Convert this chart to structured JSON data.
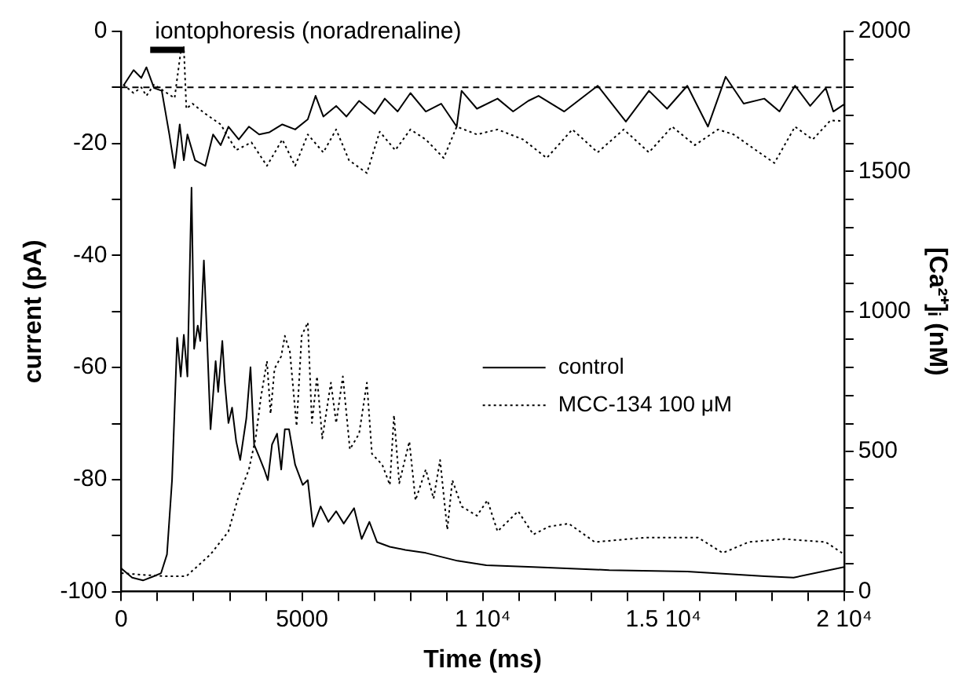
{
  "chart_data": {
    "type": "line",
    "xlabel": "Time (ms)",
    "ylabel": "current (pA)",
    "y2label": "[Ca²⁺]ᵢ (nM)",
    "xlim": [
      0,
      20000
    ],
    "xticks": [
      0,
      {
        "value": 1000,
        "label": null
      },
      {
        "value": 2000,
        "label": null
      },
      {
        "value": 3000,
        "label": null
      },
      {
        "value": 4000,
        "label": null
      },
      5000,
      {
        "value": 6000,
        "label": null
      },
      {
        "value": 7000,
        "label": null
      },
      {
        "value": 8000,
        "label": null
      },
      {
        "value": 9000,
        "label": null
      },
      {
        "value": 10000,
        "label": "1 10⁴"
      },
      {
        "value": 11000,
        "label": null
      },
      {
        "value": 12000,
        "label": null
      },
      {
        "value": 13000,
        "label": null
      },
      {
        "value": 14000,
        "label": null
      },
      {
        "value": 15000,
        "label": "1.5 10⁴"
      },
      {
        "value": 16000,
        "label": null
      },
      {
        "value": 17000,
        "label": null
      },
      {
        "value": 18000,
        "label": null
      },
      {
        "value": 19000,
        "label": null
      },
      {
        "value": 20000,
        "label": "2 10⁴"
      }
    ],
    "ylim": [
      -100,
      0
    ],
    "yticks": [
      -100,
      {
        "value": -90,
        "label": null
      },
      -80,
      {
        "value": -70,
        "label": null
      },
      -60,
      {
        "value": -50,
        "label": null
      },
      -40,
      {
        "value": -30,
        "label": null
      },
      -20,
      {
        "value": -10,
        "label": null
      },
      0
    ],
    "y2lim": [
      0,
      2000
    ],
    "y2ticks": [
      0,
      {
        "value": 100,
        "label": null
      },
      {
        "value": 200,
        "label": null
      },
      {
        "value": 300,
        "label": null
      },
      {
        "value": 400,
        "label": null
      },
      500,
      {
        "value": 600,
        "label": null
      },
      {
        "value": 700,
        "label": null
      },
      {
        "value": 800,
        "label": null
      },
      {
        "value": 900,
        "label": null
      },
      1000,
      {
        "value": 1100,
        "label": null
      },
      {
        "value": 1200,
        "label": null
      },
      {
        "value": 1300,
        "label": null
      },
      {
        "value": 1400,
        "label": null
      },
      1500,
      {
        "value": 1600,
        "label": null
      },
      {
        "value": 1700,
        "label": null
      },
      {
        "value": 1800,
        "label": null
      },
      {
        "value": 1900,
        "label": null
      },
      2000
    ],
    "grid": false,
    "legend": "right",
    "marker": "none",
    "ref_lines": [
      {
        "axis": "y",
        "value": -10,
        "line_style": "dashed",
        "color": "#000000"
      }
    ],
    "annotations": [
      {
        "text": "iontophoresis (noradrenaline)",
        "x": 800,
        "y": -3.3
      }
    ],
    "series": [
      {
        "color": "#000000",
        "line_style": "solid",
        "x": [
          800,
          1750
        ],
        "values": [
          -3.3,
          -3.3
        ]
      },
      {
        "name": "control",
        "color": "#000000",
        "line_style": "solid",
        "x": [
          57,
          340,
          553,
          695,
          906,
          1120,
          1330,
          1475,
          1617,
          1730,
          1830,
          2040,
          2325,
          2540,
          2750,
          2965,
          3250,
          3530,
          3815,
          4100,
          4455,
          4810,
          5160,
          5375,
          5590,
          5945,
          6230,
          6580,
          7010,
          7290,
          7645,
          8000,
          8425,
          8850,
          9280,
          9415,
          9840,
          10410,
          10840,
          11260,
          11545,
          12255,
          13180,
          13960,
          14600,
          15100,
          15660,
          16230,
          16720,
          17220,
          17790,
          18210,
          18640,
          19060,
          19490,
          19700,
          20000
        ],
        "values": [
          -9.7,
          -6.9,
          -8.3,
          -6.4,
          -10.1,
          -10.6,
          -18.4,
          -24.4,
          -16.6,
          -23,
          -18.4,
          -23,
          -24,
          -18.4,
          -20.3,
          -17,
          -19.3,
          -17,
          -18.4,
          -18,
          -16.6,
          -17.5,
          -15.7,
          -11.5,
          -15.2,
          -13.3,
          -15.2,
          -12.4,
          -14.7,
          -12,
          -14.3,
          -11,
          -14.3,
          -12.9,
          -17,
          -10.6,
          -13.8,
          -12,
          -14.3,
          -12.4,
          -11.5,
          -14.3,
          -9.7,
          -16.1,
          -10.6,
          -13.8,
          -9.7,
          -17,
          -8.1,
          -12.9,
          -12,
          -14.3,
          -9.7,
          -13.3,
          -10.1,
          -14.3,
          -13
        ]
      },
      {
        "name": "MCC-134 100 μM",
        "color": "#000000",
        "line_style": "dotted",
        "x": [
          57,
          340,
          553,
          695,
          906,
          1475,
          1645,
          1730,
          1800,
          1970,
          2325,
          2750,
          3180,
          3600,
          4030,
          4455,
          4810,
          5160,
          5590,
          5945,
          6300,
          6795,
          7150,
          7580,
          8000,
          8425,
          8920,
          9280,
          9840,
          10410,
          11120,
          11770,
          12480,
          13180,
          13900,
          14600,
          15240,
          15870,
          16510,
          16940,
          18070,
          18640,
          19130,
          19620,
          20000
        ],
        "values": [
          -9.5,
          -11,
          -10,
          -11.5,
          -9.5,
          -11.9,
          -3.6,
          -2.8,
          -13.8,
          -12.9,
          -14.7,
          -16.6,
          -21.2,
          -19.8,
          -24,
          -19.3,
          -24,
          -18.4,
          -21.6,
          -17.5,
          -23,
          -25.3,
          -17.9,
          -21.2,
          -17.5,
          -19.3,
          -22.6,
          -17,
          -18.4,
          -17.5,
          -19.3,
          -22.6,
          -17.5,
          -21.6,
          -17.5,
          -21.6,
          -17,
          -20.3,
          -17.5,
          -18.4,
          -23.5,
          -17,
          -19.3,
          -15.9,
          -16
        ]
      },
      {
        "color": "#000000",
        "line_style": "solid",
        "axis": "y2",
        "x": [
          0,
          300,
          600,
          900,
          1100,
          1264,
          1404,
          1546,
          1645,
          1730,
          1830,
          1943,
          2015,
          2115,
          2185,
          2285,
          2370,
          2470,
          2610,
          2680,
          2795,
          2865,
          2965,
          3065,
          3180,
          3290,
          3460,
          3575,
          3675,
          3815,
          3955,
          4055,
          4170,
          4310,
          4425,
          4525,
          4640,
          4810,
          5020,
          5160,
          5305,
          5515,
          5730,
          5945,
          6155,
          6440,
          6650,
          6865,
          7075,
          7430,
          7860,
          8425,
          9300,
          10100,
          11400,
          13500,
          15660,
          17800,
          18600,
          20000
        ],
        "values": [
          83,
          50,
          40,
          55,
          66,
          133,
          398,
          906,
          768,
          917,
          768,
          1442,
          867,
          950,
          895,
          1182,
          913,
          580,
          823,
          713,
          895,
          746,
          602,
          657,
          536,
          470,
          619,
          801,
          525,
          481,
          436,
          398,
          525,
          564,
          436,
          580,
          580,
          453,
          381,
          398,
          232,
          304,
          249,
          287,
          243,
          298,
          188,
          249,
          177,
          160,
          149,
          138,
          110,
          94,
          88,
          77,
          72,
          55,
          50,
          88
        ]
      },
      {
        "color": "#000000",
        "line_style": "dotted",
        "axis": "y2",
        "x": [
          0,
          600,
          1200,
          1800,
          2470,
          2965,
          3250,
          3530,
          3715,
          3860,
          4030,
          4130,
          4240,
          4425,
          4525,
          4665,
          4850,
          4990,
          5160,
          5275,
          5415,
          5560,
          5800,
          5945,
          6130,
          6325,
          6580,
          6795,
          6935,
          7220,
          7430,
          7545,
          7690,
          7970,
          8140,
          8425,
          8640,
          8820,
          9020,
          9160,
          9415,
          9840,
          10130,
          10410,
          10980,
          11400,
          11830,
          12380,
          13100,
          14510,
          15960,
          16640,
          17360,
          18340,
          19490,
          20000
        ],
        "values": [
          66,
          60,
          55,
          55,
          133,
          215,
          343,
          436,
          547,
          691,
          823,
          635,
          796,
          840,
          913,
          856,
          591,
          913,
          961,
          602,
          768,
          547,
          746,
          602,
          768,
          508,
          564,
          746,
          492,
          453,
          381,
          630,
          387,
          536,
          326,
          436,
          332,
          470,
          221,
          398,
          304,
          271,
          326,
          215,
          287,
          204,
          232,
          243,
          177,
          193,
          193,
          138,
          177,
          188,
          177,
          133
        ]
      }
    ]
  }
}
